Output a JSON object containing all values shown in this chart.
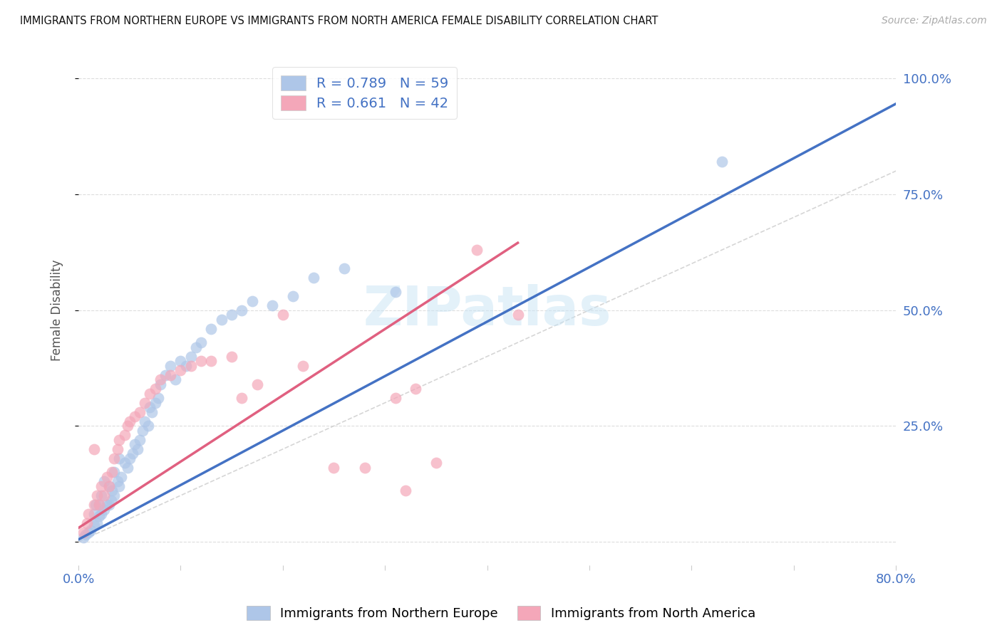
{
  "title": "IMMIGRANTS FROM NORTHERN EUROPE VS IMMIGRANTS FROM NORTH AMERICA FEMALE DISABILITY CORRELATION CHART",
  "source": "Source: ZipAtlas.com",
  "ylabel": "Female Disability",
  "y_ticks": [
    0.0,
    0.25,
    0.5,
    0.75,
    1.0
  ],
  "y_tick_labels": [
    "",
    "25.0%",
    "50.0%",
    "75.0%",
    "100.0%"
  ],
  "xlim": [
    0.0,
    0.8
  ],
  "ylim": [
    -0.05,
    1.05
  ],
  "blue_R": 0.789,
  "blue_N": 59,
  "pink_R": 0.661,
  "pink_N": 42,
  "blue_color": "#aec6e8",
  "pink_color": "#f4a7b9",
  "blue_line_color": "#4472c4",
  "pink_line_color": "#e06080",
  "diag_line_color": "#cccccc",
  "legend_label_blue": "Immigrants from Northern Europe",
  "legend_label_pink": "Immigrants from North America",
  "watermark": "ZIPatlas",
  "blue_scatter_x": [
    0.005,
    0.007,
    0.01,
    0.012,
    0.015,
    0.015,
    0.017,
    0.018,
    0.02,
    0.02,
    0.022,
    0.022,
    0.025,
    0.025,
    0.028,
    0.03,
    0.03,
    0.032,
    0.033,
    0.035,
    0.035,
    0.038,
    0.04,
    0.04,
    0.042,
    0.045,
    0.048,
    0.05,
    0.053,
    0.055,
    0.058,
    0.06,
    0.063,
    0.065,
    0.068,
    0.07,
    0.072,
    0.075,
    0.078,
    0.08,
    0.085,
    0.09,
    0.095,
    0.1,
    0.105,
    0.11,
    0.115,
    0.12,
    0.13,
    0.14,
    0.15,
    0.16,
    0.17,
    0.19,
    0.21,
    0.23,
    0.26,
    0.31,
    0.63
  ],
  "blue_scatter_y": [
    0.01,
    0.015,
    0.02,
    0.025,
    0.035,
    0.06,
    0.08,
    0.04,
    0.055,
    0.08,
    0.06,
    0.1,
    0.07,
    0.13,
    0.08,
    0.08,
    0.12,
    0.09,
    0.11,
    0.1,
    0.15,
    0.13,
    0.12,
    0.18,
    0.14,
    0.17,
    0.16,
    0.18,
    0.19,
    0.21,
    0.2,
    0.22,
    0.24,
    0.26,
    0.25,
    0.29,
    0.28,
    0.3,
    0.31,
    0.34,
    0.36,
    0.38,
    0.35,
    0.39,
    0.38,
    0.4,
    0.42,
    0.43,
    0.46,
    0.48,
    0.49,
    0.5,
    0.52,
    0.51,
    0.53,
    0.57,
    0.59,
    0.54,
    0.82
  ],
  "pink_scatter_x": [
    0.005,
    0.008,
    0.01,
    0.015,
    0.015,
    0.018,
    0.02,
    0.022,
    0.025,
    0.028,
    0.03,
    0.033,
    0.035,
    0.038,
    0.04,
    0.045,
    0.048,
    0.05,
    0.055,
    0.06,
    0.065,
    0.07,
    0.075,
    0.08,
    0.09,
    0.1,
    0.11,
    0.12,
    0.13,
    0.15,
    0.16,
    0.175,
    0.2,
    0.22,
    0.25,
    0.28,
    0.31,
    0.32,
    0.33,
    0.35,
    0.39,
    0.43
  ],
  "pink_scatter_y": [
    0.02,
    0.04,
    0.06,
    0.08,
    0.2,
    0.1,
    0.08,
    0.12,
    0.1,
    0.14,
    0.12,
    0.15,
    0.18,
    0.2,
    0.22,
    0.23,
    0.25,
    0.26,
    0.27,
    0.28,
    0.3,
    0.32,
    0.33,
    0.35,
    0.36,
    0.37,
    0.38,
    0.39,
    0.39,
    0.4,
    0.31,
    0.34,
    0.49,
    0.38,
    0.16,
    0.16,
    0.31,
    0.11,
    0.33,
    0.17,
    0.63,
    0.49
  ],
  "blue_line_x0": 0.0,
  "blue_line_y0": 0.005,
  "blue_line_x1": 0.8,
  "blue_line_y1": 0.945,
  "pink_line_x0": 0.0,
  "pink_line_y0": 0.03,
  "pink_line_x1": 0.43,
  "pink_line_y1": 0.645
}
